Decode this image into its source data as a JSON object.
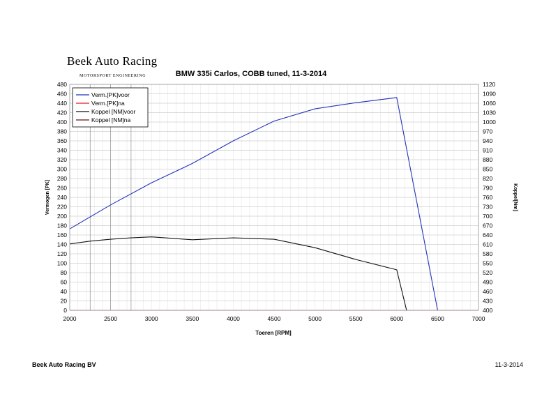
{
  "logo": {
    "text": "Beek Auto Racing",
    "subtitle": "MOTORSPORT ENGINEERING",
    "color": "#000000"
  },
  "footer": {
    "company": "Beek Auto Racing BV",
    "date": "11-3-2014"
  },
  "chart_data": {
    "type": "line",
    "title": "BMW 335i Carlos, COBB tuned, 11-3-2014",
    "xlabel": "Toeren [RPM]",
    "ylabel": "Vermogen [PK]",
    "y2label": "Koppel[Nm]",
    "xlim": [
      2000,
      7000
    ],
    "ylim": [
      0,
      480
    ],
    "y2lim": [
      400,
      1120
    ],
    "x_ticks": [
      2000,
      2500,
      3000,
      3500,
      4000,
      4500,
      5000,
      5500,
      6000,
      6500,
      7000
    ],
    "y_ticks": [
      0,
      20,
      40,
      60,
      80,
      100,
      120,
      140,
      160,
      180,
      200,
      220,
      240,
      260,
      280,
      300,
      320,
      340,
      360,
      380,
      400,
      420,
      440,
      460,
      480
    ],
    "y2_ticks": [
      400,
      430,
      460,
      490,
      520,
      550,
      580,
      610,
      640,
      670,
      700,
      730,
      760,
      790,
      820,
      850,
      880,
      910,
      940,
      970,
      1000,
      1030,
      1060,
      1090,
      1120
    ],
    "vertical_markers": [
      2250,
      2500,
      2750
    ],
    "grid": true,
    "legend_position": "top-left",
    "series": [
      {
        "name": "Verm.[PK]voor",
        "color": "#2233bb",
        "axis": "left",
        "x": [
          2000,
          2500,
          3000,
          3500,
          4000,
          4500,
          5000,
          5500,
          6000,
          6500
        ],
        "y": [
          173,
          224,
          271,
          312,
          360,
          402,
          428,
          441,
          452,
          0
        ]
      },
      {
        "name": "Verm.[PK]na",
        "color": "#dd2222",
        "axis": "left",
        "x": [
          2000,
          7000
        ],
        "y": [
          0,
          0
        ]
      },
      {
        "name": "Koppel [NM]voor",
        "color": "#111111",
        "axis": "left",
        "x": [
          2000,
          2250,
          2500,
          2750,
          3000,
          3500,
          4000,
          4500,
          5000,
          5500,
          6000,
          6120
        ],
        "y": [
          141,
          147,
          151,
          154,
          156,
          150,
          154,
          151,
          133,
          108,
          86,
          0
        ]
      },
      {
        "name": "Koppel [NM]na",
        "color": "#661111",
        "axis": "left",
        "x": [],
        "y": []
      }
    ]
  }
}
